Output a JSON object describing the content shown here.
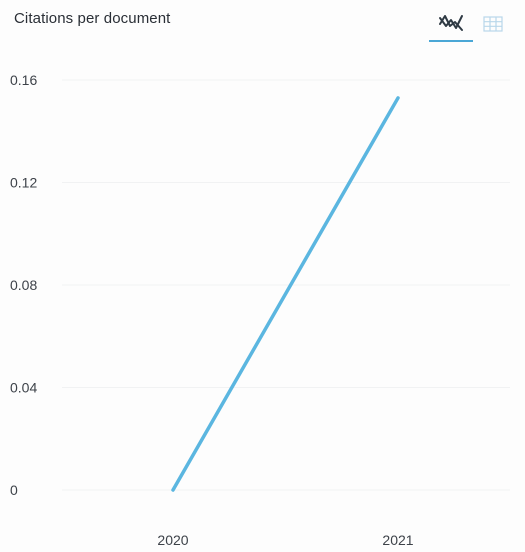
{
  "widget": {
    "title": "Citations per document",
    "view_options": {
      "chart_icon": "line-chart-icon",
      "table_icon": "table-grid-icon",
      "active": "chart"
    },
    "accent_color": "#5bb6e0"
  },
  "chart_data": {
    "type": "line",
    "title": "Citations per document",
    "xlabel": "",
    "ylabel": "",
    "categories": [
      "2020",
      "2021"
    ],
    "series": [
      {
        "values": [
          0,
          0.153
        ],
        "color": "#5bb6e0"
      }
    ],
    "ylim": [
      0,
      0.16
    ],
    "yticks": [
      0,
      0.04,
      0.08,
      0.12,
      0.16
    ],
    "ytick_labels": [
      "0",
      "0.04",
      "0.08",
      "0.12",
      "0.16"
    ],
    "grid": true,
    "legend": "none"
  }
}
